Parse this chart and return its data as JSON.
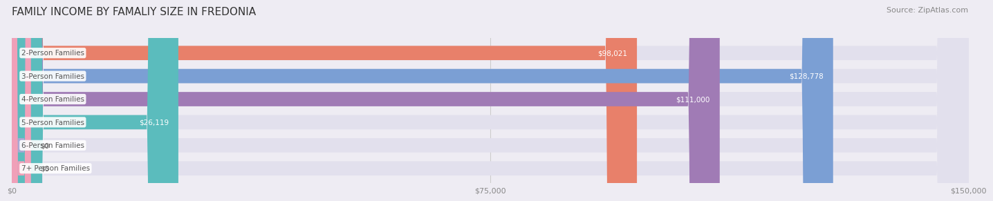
{
  "title": "FAMILY INCOME BY FAMALIY SIZE IN FREDONIA",
  "source": "Source: ZipAtlas.com",
  "categories": [
    "2-Person Families",
    "3-Person Families",
    "4-Person Families",
    "5-Person Families",
    "6-Person Families",
    "7+ Person Families"
  ],
  "values": [
    98021,
    128778,
    111000,
    26119,
    0,
    0
  ],
  "bar_colors": [
    "#E8806A",
    "#7B9FD4",
    "#A07BB5",
    "#5BBCBD",
    "#A9A8D4",
    "#F0A0B8"
  ],
  "value_labels": [
    "$98,021",
    "$128,778",
    "$111,000",
    "$26,119",
    "$0",
    "$0"
  ],
  "xlim": [
    0,
    150000
  ],
  "xticks": [
    0,
    75000,
    150000
  ],
  "xticklabels": [
    "$0",
    "$75,000",
    "$150,000"
  ],
  "background_color": "#eeecf3",
  "bar_background_color": "#e2e0ed",
  "title_fontsize": 11,
  "source_fontsize": 8,
  "label_fontsize": 7.5,
  "value_fontsize": 7.5,
  "bar_height": 0.62
}
